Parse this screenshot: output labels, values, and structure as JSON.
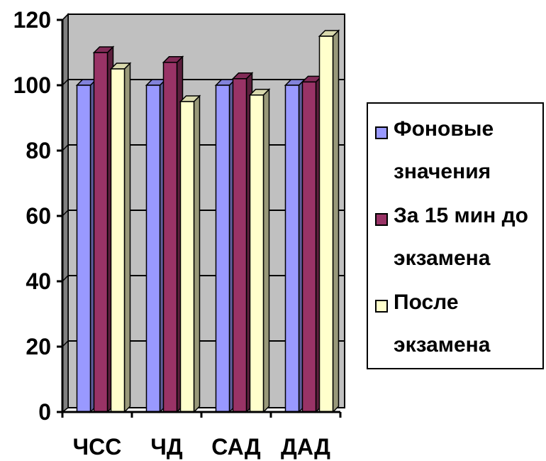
{
  "chart_data": {
    "type": "bar",
    "categories": [
      "ЧСС",
      "ЧД",
      "САД",
      "ДАД"
    ],
    "series": [
      {
        "name": "Фоновые значения",
        "values": [
          100,
          100,
          100,
          100
        ],
        "color": "#9999FF"
      },
      {
        "name": "За 15 мин до экзамена",
        "values": [
          110,
          107,
          102,
          101
        ],
        "color": "#993366"
      },
      {
        "name": "После экзамена",
        "values": [
          105,
          95,
          97,
          115
        ],
        "color": "#FFFFCC"
      }
    ],
    "yticks": [
      "0",
      "20",
      "40",
      "60",
      "80",
      "100",
      "120"
    ],
    "ylim": [
      0,
      120
    ],
    "legend_position": "right",
    "plot_background": "#C0C0C0",
    "grid": true
  }
}
